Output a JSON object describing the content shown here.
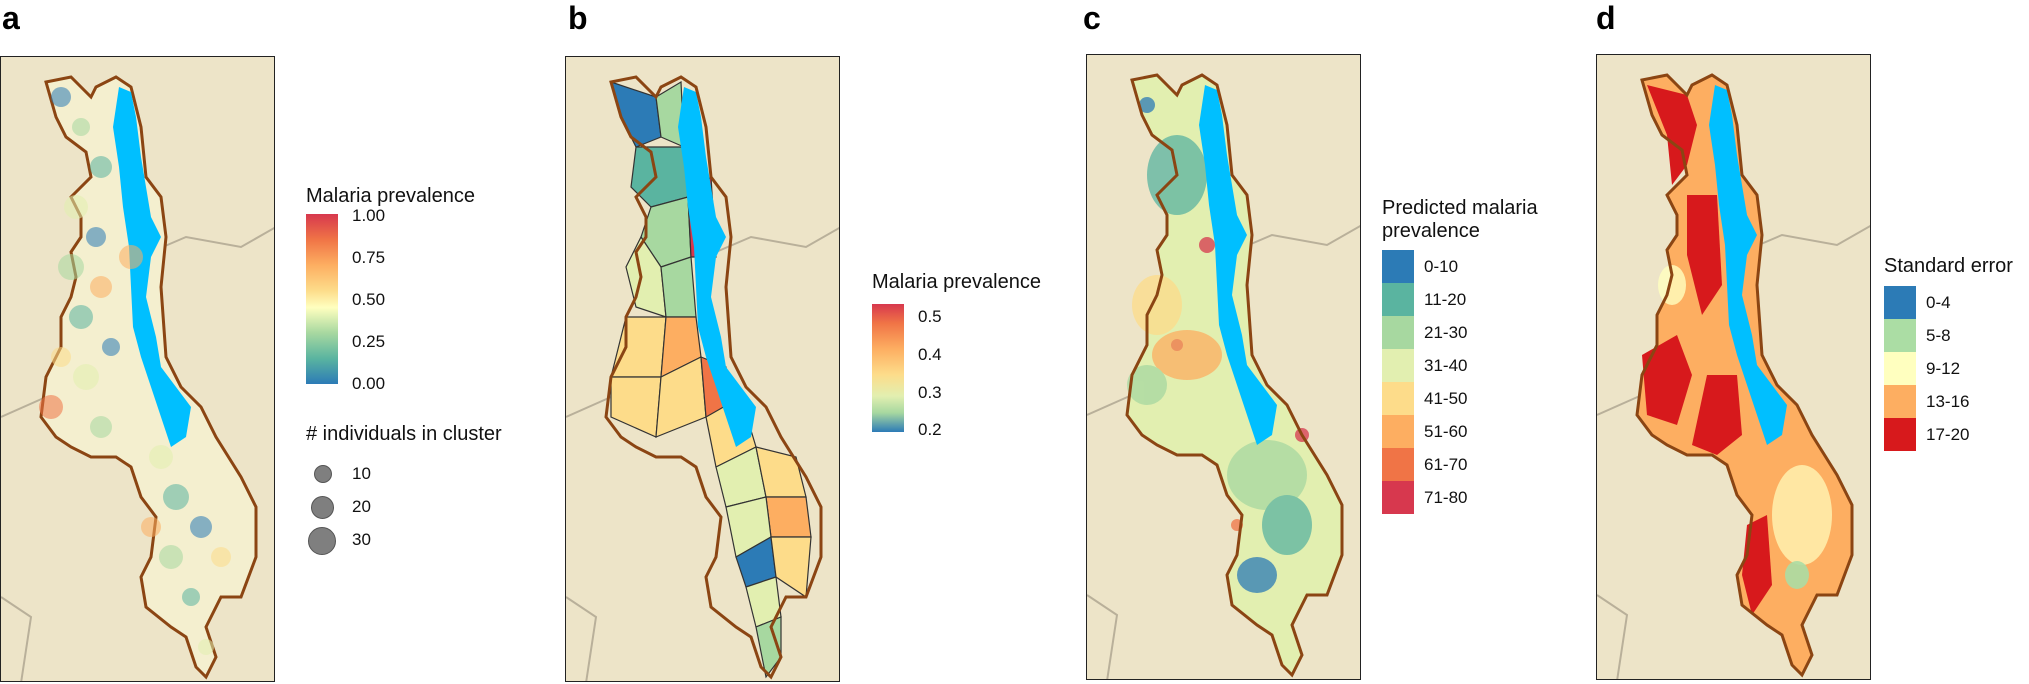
{
  "panels": [
    {
      "letter": "a",
      "legend": {
        "title": "Malaria prevalence",
        "ticks": [
          "1.00",
          "0.75",
          "0.50",
          "0.25",
          "0.00"
        ],
        "size_title": "# individuals in cluster",
        "sizes": [
          "10",
          "20",
          "30"
        ]
      }
    },
    {
      "letter": "b",
      "legend": {
        "title": "Malaria prevalence",
        "ticks": [
          "0.5",
          "0.4",
          "0.3",
          "0.2"
        ]
      }
    },
    {
      "letter": "c",
      "legend": {
        "title_line1": "Predicted malaria",
        "title_line2": "prevalence",
        "classes": [
          {
            "label": "0-10",
            "color": "#2c7bb6"
          },
          {
            "label": "11-20",
            "color": "#5ab4a0"
          },
          {
            "label": "21-30",
            "color": "#a7d8a0"
          },
          {
            "label": "31-40",
            "color": "#e2efb0"
          },
          {
            "label": "41-50",
            "color": "#fddc8a"
          },
          {
            "label": "51-60",
            "color": "#fdae61"
          },
          {
            "label": "61-70",
            "color": "#f07446"
          },
          {
            "label": "71-80",
            "color": "#d7384e"
          }
        ]
      }
    },
    {
      "letter": "d",
      "legend": {
        "title": "Standard error",
        "classes": [
          {
            "label": "0-4",
            "color": "#2c7bb6"
          },
          {
            "label": "5-8",
            "color": "#abdda4"
          },
          {
            "label": "9-12",
            "color": "#ffffbf"
          },
          {
            "label": "13-16",
            "color": "#fdae61"
          },
          {
            "label": "17-20",
            "color": "#d7191c"
          }
        ]
      }
    }
  ],
  "colors": {
    "background_land": "#ede4c8",
    "lake": "#00bfff",
    "border": "#8b4513",
    "country_lines": "#b9b09a"
  }
}
